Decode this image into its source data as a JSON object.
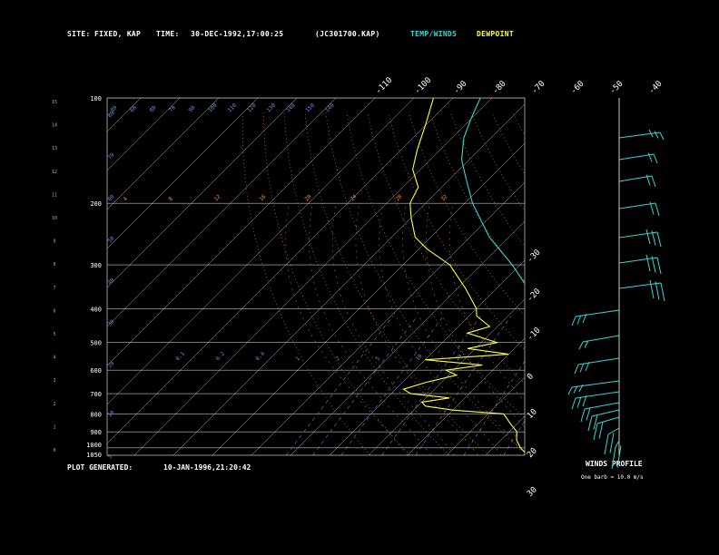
{
  "header": {
    "site_label": "SITE:",
    "site_value": "FIXED, KAP",
    "time_label": "TIME:",
    "time_value": "30-DEC-1992,17:00:25",
    "file_id": "(JC301700.KAP)",
    "legend_temp": "TEMP/WINDS",
    "legend_dew": "DEWPOINT"
  },
  "footer": {
    "generated_label": "PLOT GENERATED:",
    "generated_value": "10-JAN-1996,21:20:42",
    "winds_title": "WINDS PROFILE",
    "barb_note": "One barb = 10.0 m/s"
  },
  "colors": {
    "temp": "#33d6d6",
    "dew": "#ffff33",
    "isobar": "#ffffff",
    "isotherm": "#ffffff",
    "dry_adiabat": "#ff9933",
    "moist_adiabat": "#e0a020",
    "mixing_ratio": "#6a8fd8",
    "text_blue": "#6a8fd8",
    "text_orange": "#ff8a33"
  },
  "chart_data": {
    "type": "line",
    "pressure_levels": [
      "100",
      "200",
      "300",
      "400",
      "500",
      "600",
      "700",
      "800",
      "900",
      "1000",
      "1050"
    ],
    "height_km_ticks": [
      "0",
      "1",
      "2",
      "3",
      "4",
      "5",
      "6",
      "7",
      "8",
      "9",
      "10",
      "11",
      "12",
      "13",
      "14",
      "15"
    ],
    "isotherm_top_labels": [
      "-110",
      "-100",
      "-90",
      "-80",
      "-70",
      "-60",
      "-50",
      "-40"
    ],
    "isotherm_right_labels": [
      "-30",
      "-20",
      "-10",
      "0",
      "10",
      "20",
      "30"
    ],
    "theta_labels": [
      "80",
      "60",
      "80",
      "70",
      "90",
      "100",
      "110",
      "120",
      "130",
      "140",
      "150",
      "140"
    ],
    "mixing_labels_upper": [
      "4",
      "8",
      "12",
      "16",
      "20",
      "24",
      "28",
      "32"
    ],
    "mixing_labels_lower": [
      "0.1",
      "0.2",
      "0.4",
      "1",
      "2",
      "5",
      "10",
      "20"
    ],
    "mixing_labels_left": [
      "80",
      "70",
      "60",
      "50",
      "40",
      "30",
      "20",
      "10",
      "5"
    ],
    "temperature": [
      {
        "p": 1040,
        "t": 22
      },
      {
        "p": 1000,
        "t": 20
      },
      {
        "p": 950,
        "t": 18
      },
      {
        "p": 900,
        "t": 16
      },
      {
        "p": 850,
        "t": 14
      },
      {
        "p": 800,
        "t": 12
      },
      {
        "p": 750,
        "t": 10
      },
      {
        "p": 700,
        "t": 8
      },
      {
        "p": 650,
        "t": 7
      },
      {
        "p": 600,
        "t": 6
      },
      {
        "p": 550,
        "t": 3
      },
      {
        "p": 500,
        "t": -3
      },
      {
        "p": 450,
        "t": -9
      },
      {
        "p": 400,
        "t": -15
      },
      {
        "p": 350,
        "t": -22
      },
      {
        "p": 300,
        "t": -32
      },
      {
        "p": 250,
        "t": -45
      },
      {
        "p": 200,
        "t": -58
      },
      {
        "p": 170,
        "t": -66
      },
      {
        "p": 150,
        "t": -72
      },
      {
        "p": 130,
        "t": -77
      },
      {
        "p": 115,
        "t": -80
      },
      {
        "p": 100,
        "t": -83
      }
    ],
    "dewpoint": [
      {
        "p": 1040,
        "t": 20
      },
      {
        "p": 1000,
        "t": 17
      },
      {
        "p": 950,
        "t": 14
      },
      {
        "p": 900,
        "t": 12
      },
      {
        "p": 850,
        "t": 8
      },
      {
        "p": 800,
        "t": 4
      },
      {
        "p": 780,
        "t": -10
      },
      {
        "p": 760,
        "t": -18
      },
      {
        "p": 740,
        "t": -20
      },
      {
        "p": 720,
        "t": -14
      },
      {
        "p": 700,
        "t": -25
      },
      {
        "p": 680,
        "t": -28
      },
      {
        "p": 650,
        "t": -24
      },
      {
        "p": 620,
        "t": -18
      },
      {
        "p": 600,
        "t": -22
      },
      {
        "p": 580,
        "t": -14
      },
      {
        "p": 560,
        "t": -30
      },
      {
        "p": 540,
        "t": -10
      },
      {
        "p": 520,
        "t": -22
      },
      {
        "p": 500,
        "t": -16
      },
      {
        "p": 470,
        "t": -26
      },
      {
        "p": 450,
        "t": -22
      },
      {
        "p": 420,
        "t": -28
      },
      {
        "p": 400,
        "t": -30
      },
      {
        "p": 350,
        "t": -38
      },
      {
        "p": 300,
        "t": -48
      },
      {
        "p": 270,
        "t": -58
      },
      {
        "p": 250,
        "t": -64
      },
      {
        "p": 220,
        "t": -70
      },
      {
        "p": 200,
        "t": -74
      },
      {
        "p": 180,
        "t": -76
      },
      {
        "p": 160,
        "t": -82
      },
      {
        "p": 140,
        "t": -86
      },
      {
        "p": 120,
        "t": -90
      },
      {
        "p": 100,
        "t": -95
      }
    ],
    "xlabel": "",
    "ylabel": "",
    "grid": true
  }
}
